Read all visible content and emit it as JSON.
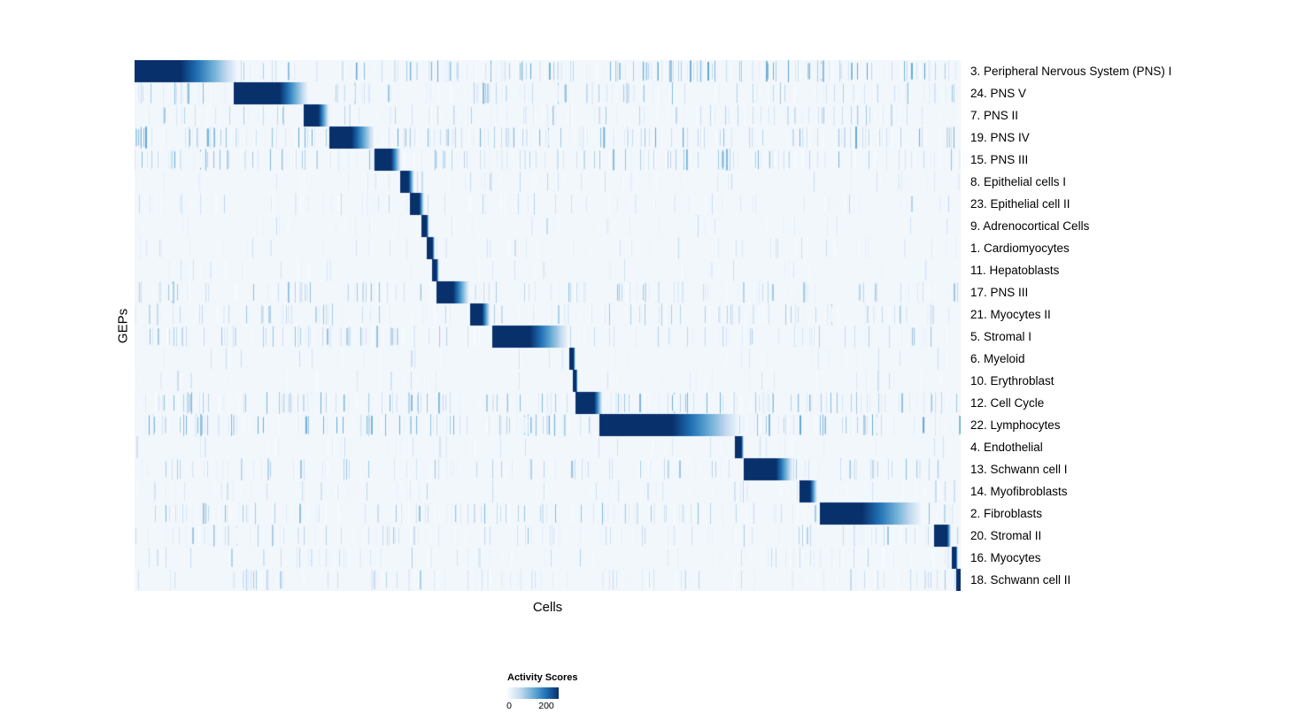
{
  "chart_data": {
    "type": "heatmap",
    "title": "",
    "xlabel": "Cells",
    "ylabel": "GEPs",
    "legend": {
      "title": "Activity Scores",
      "min_label": "0",
      "max_label": "200",
      "min_value": 0,
      "max_value": 200,
      "colors": [
        "#f7fbff",
        "#c6dbef",
        "#6baed6",
        "#2171b5",
        "#08306b"
      ]
    },
    "background_color": "#f2f7fc",
    "max_color": "#08306b",
    "rows": [
      {
        "label": "3. Peripheral Nervous System (PNS) I",
        "block_start": 0.0,
        "block_end": 0.055,
        "fade_end": 0.125,
        "noise": 0.55
      },
      {
        "label": "24. PNS V",
        "block_start": 0.121,
        "block_end": 0.175,
        "fade_end": 0.21,
        "noise": 0.35
      },
      {
        "label": "7. PNS II",
        "block_start": 0.205,
        "block_end": 0.222,
        "fade_end": 0.235,
        "noise": 0.3
      },
      {
        "label": "19. PNS IV",
        "block_start": 0.236,
        "block_end": 0.262,
        "fade_end": 0.29,
        "noise": 0.5
      },
      {
        "label": "15. PNS III",
        "block_start": 0.291,
        "block_end": 0.31,
        "fade_end": 0.322,
        "noise": 0.45
      },
      {
        "label": "8. Epithelial cells I",
        "block_start": 0.322,
        "block_end": 0.331,
        "fade_end": 0.338,
        "noise": 0.15
      },
      {
        "label": "23. Epithelial cell II",
        "block_start": 0.334,
        "block_end": 0.344,
        "fade_end": 0.35,
        "noise": 0.18
      },
      {
        "label": "9. Adrenocortical Cells",
        "block_start": 0.348,
        "block_end": 0.353,
        "fade_end": 0.356,
        "noise": 0.1
      },
      {
        "label": "1. Cardiomyocytes",
        "block_start": 0.354,
        "block_end": 0.36,
        "fade_end": 0.363,
        "noise": 0.12
      },
      {
        "label": "11. Hepatoblasts",
        "block_start": 0.361,
        "block_end": 0.365,
        "fade_end": 0.368,
        "noise": 0.1
      },
      {
        "label": "17. PNS III",
        "block_start": 0.366,
        "block_end": 0.385,
        "fade_end": 0.405,
        "noise": 0.35
      },
      {
        "label": "21. Myocytes II",
        "block_start": 0.407,
        "block_end": 0.42,
        "fade_end": 0.43,
        "noise": 0.3
      },
      {
        "label": "5. Stromal I",
        "block_start": 0.434,
        "block_end": 0.478,
        "fade_end": 0.525,
        "noise": 0.35
      },
      {
        "label": "6. Myeloid",
        "block_start": 0.527,
        "block_end": 0.531,
        "fade_end": 0.533,
        "noise": 0.1
      },
      {
        "label": "10. Erythroblast",
        "block_start": 0.531,
        "block_end": 0.534,
        "fade_end": 0.536,
        "noise": 0.1
      },
      {
        "label": "12. Cell Cycle",
        "block_start": 0.534,
        "block_end": 0.556,
        "fade_end": 0.566,
        "noise": 0.45
      },
      {
        "label": "22. Lymphocytes",
        "block_start": 0.563,
        "block_end": 0.65,
        "fade_end": 0.732,
        "noise": 0.5
      },
      {
        "label": "4. Endothelial",
        "block_start": 0.727,
        "block_end": 0.734,
        "fade_end": 0.737,
        "noise": 0.1
      },
      {
        "label": "13. Schwann cell I",
        "block_start": 0.738,
        "block_end": 0.776,
        "fade_end": 0.797,
        "noise": 0.3
      },
      {
        "label": "14. Myofibroblasts",
        "block_start": 0.805,
        "block_end": 0.817,
        "fade_end": 0.826,
        "noise": 0.15
      },
      {
        "label": "2. Fibroblasts",
        "block_start": 0.83,
        "block_end": 0.88,
        "fade_end": 0.953,
        "noise": 0.4
      },
      {
        "label": "20. Stromal II",
        "block_start": 0.968,
        "block_end": 0.983,
        "fade_end": 0.988,
        "noise": 0.3
      },
      {
        "label": "16. Myocytes",
        "block_start": 0.99,
        "block_end": 0.994,
        "fade_end": 0.996,
        "noise": 0.2
      },
      {
        "label": "18. Schwann cell II",
        "block_start": 0.995,
        "block_end": 1.0,
        "fade_end": 1.0,
        "noise": 0.25
      }
    ]
  }
}
